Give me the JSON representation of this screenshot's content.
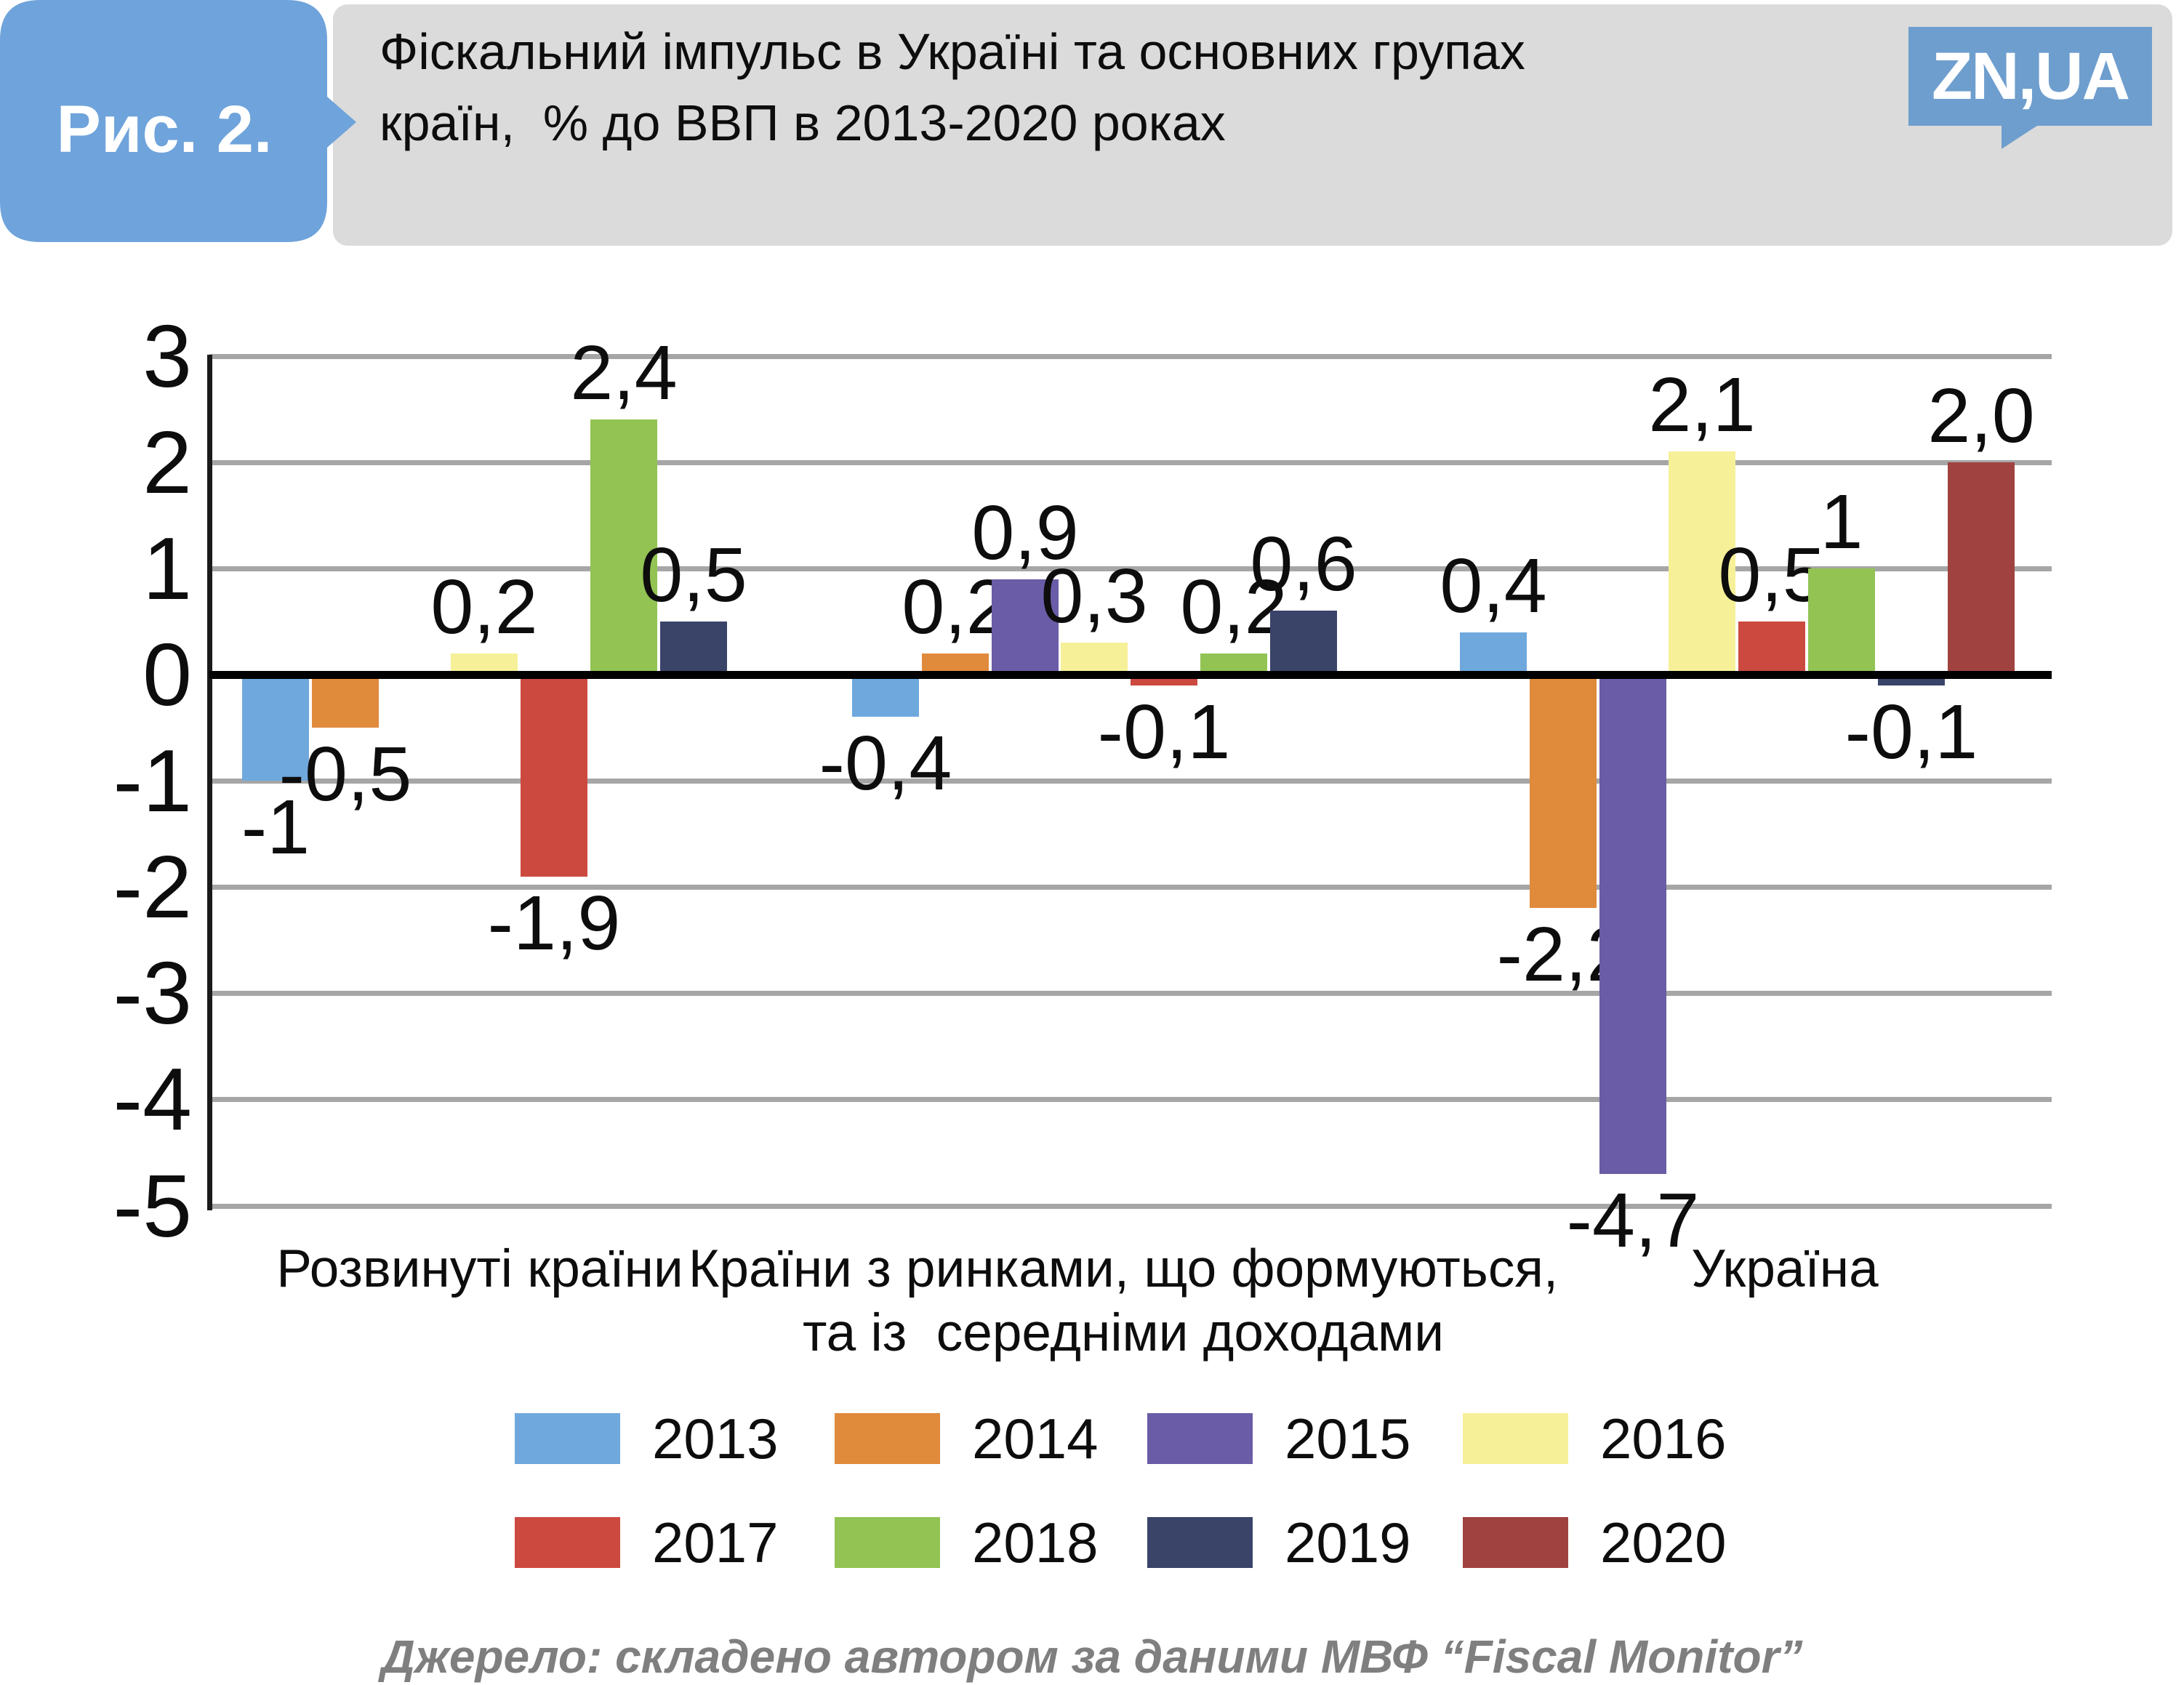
{
  "header": {
    "figure_label": "Рис. 2.",
    "title_line1": "Фіскальний імпульс в Україні та основних групах",
    "title_line2": "країн,  % до ВВП в 2013-2020 роках",
    "logo_text": "ZN,UA"
  },
  "source_note": "Джерело: складено автором за даними МВФ “Fiscal Monitor”",
  "colors": {
    "badge_blue": "#6fa3db",
    "logo_blue": "#6e9ece",
    "header_gray": "#dbdbdb",
    "gridline_gray": "#a6a6a6",
    "source_gray": "#7f7f7f"
  },
  "chart_data": {
    "type": "bar",
    "title": "Фіскальний імпульс в Україні та основних групах країн, % до ВВП в 2013-2020 роках",
    "xlabel": "",
    "ylabel": "% до ВВП",
    "ylim": [
      -5,
      3
    ],
    "yticks": [
      3,
      2,
      1,
      0,
      -1,
      -2,
      -3,
      -4,
      -5
    ],
    "grid": true,
    "legend_position": "bottom",
    "categories": [
      "Розвинуті країни",
      "Країни з ринками, що формуються,\nта із  середніми доходами",
      "Україна"
    ],
    "series": [
      {
        "name": "2013",
        "color": "#6fa8dc",
        "values": [
          -1,
          -0.4,
          0.4
        ],
        "labels": [
          "-1",
          "-0,4",
          "0,4"
        ]
      },
      {
        "name": "2014",
        "color": "#e08a3c",
        "values": [
          -0.5,
          0.2,
          -2.2
        ],
        "labels": [
          "-0,5",
          "0,2",
          "-2,2"
        ]
      },
      {
        "name": "2015",
        "color": "#6a5ca6",
        "values": [
          null,
          0.9,
          -4.7
        ],
        "labels": [
          null,
          "0,9",
          "-4,7"
        ]
      },
      {
        "name": "2016",
        "color": "#f6f098",
        "values": [
          0.2,
          0.3,
          2.1
        ],
        "labels": [
          "0,2",
          "0,3",
          "2,1"
        ]
      },
      {
        "name": "2017",
        "color": "#cc4940",
        "values": [
          -1.9,
          -0.1,
          0.5
        ],
        "labels": [
          "-1,9",
          "-0,1",
          "0,5"
        ]
      },
      {
        "name": "2018",
        "color": "#92c353",
        "values": [
          2.4,
          0.2,
          1
        ],
        "labels": [
          "2,4",
          "0,2",
          "1"
        ]
      },
      {
        "name": "2019",
        "color": "#3a4469",
        "values": [
          0.5,
          0.6,
          -0.1
        ],
        "labels": [
          "0,5",
          "0,6",
          "-0,1"
        ]
      },
      {
        "name": "2020",
        "color": "#a04240",
        "values": [
          null,
          null,
          2.0
        ],
        "labels": [
          null,
          null,
          "2,0"
        ]
      }
    ]
  }
}
